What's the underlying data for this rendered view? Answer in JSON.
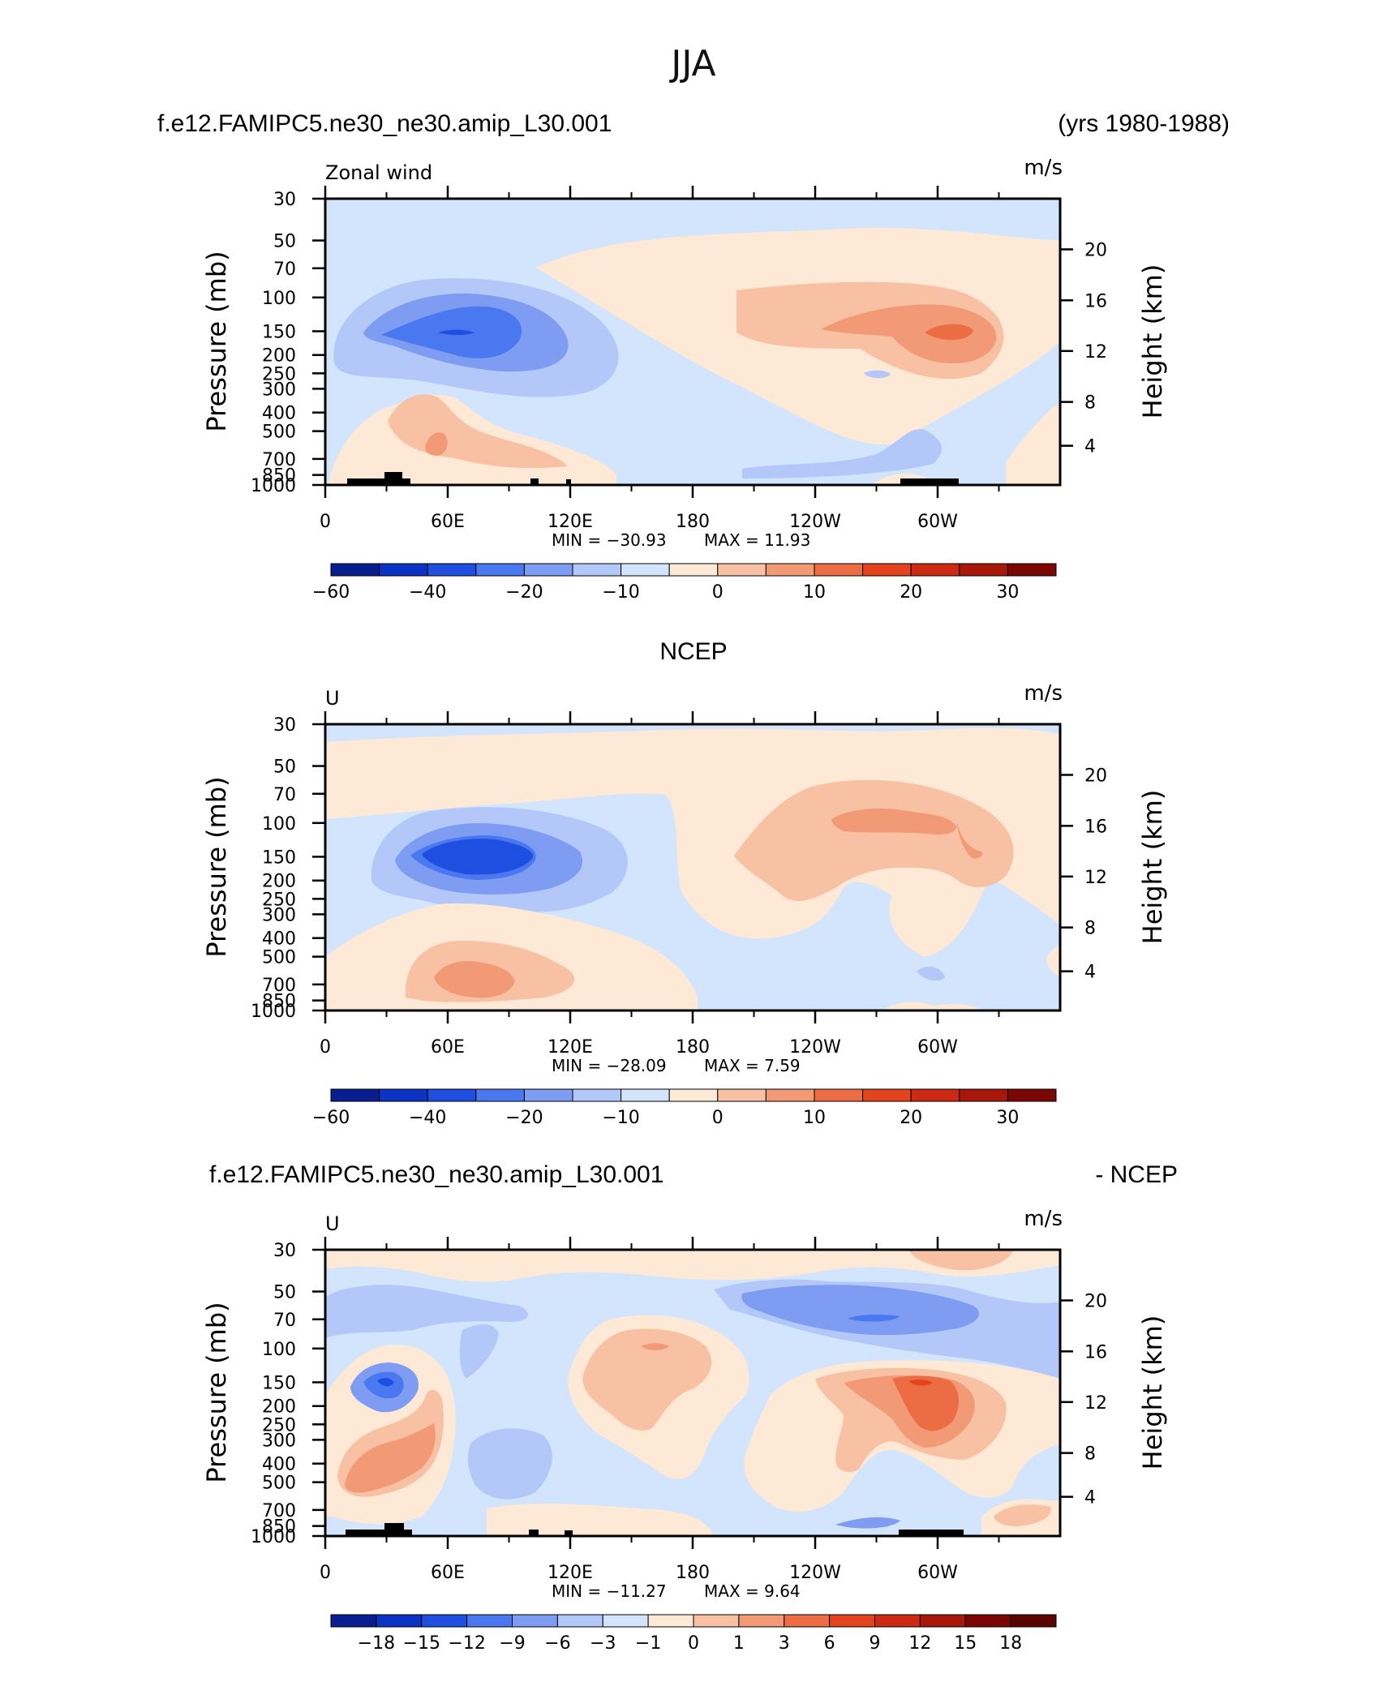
{
  "figure": {
    "title": "JJA",
    "case_name": "f.e12.FAMIPC5.ne30_ne30.amip_L30.001",
    "years": "(yrs 1980-1988)",
    "obs_name": "NCEP",
    "diff_case": "f.e12.FAMIPC5.ne30_ne30.amip_L30.001",
    "diff_suffix": "- NCEP"
  },
  "chart_data": [
    {
      "type": "heatmap",
      "variable_label": "Zonal wind",
      "units": "m/s",
      "ylabel": "Pressure (mb)",
      "ylabel_right": "Height (km)",
      "x_ticks": [
        "0",
        "60E",
        "120E",
        "180",
        "120W",
        "60W"
      ],
      "y_ticks": [
        "30",
        "50",
        "70",
        "100",
        "150",
        "200",
        "250",
        "300",
        "400",
        "500",
        "700",
        "850",
        "1000"
      ],
      "y2_ticks": [
        "20",
        "16",
        "12",
        "8",
        "4"
      ],
      "min_label": "MIN = −30.93",
      "max_label": "MAX = 11.93",
      "min": -30.93,
      "max": 11.93,
      "colorbar_ticks": [
        "−60",
        "−40",
        "−20",
        "−10",
        "0",
        "10",
        "20",
        "30"
      ],
      "colorbar_colors": [
        "#081d8f",
        "#0b34c4",
        "#1f4fe0",
        "#4a78f0",
        "#7e9cf2",
        "#b3c8f8",
        "#d2e5fc",
        "#fde9d6",
        "#f8c1a3",
        "#f29a76",
        "#ec6d44",
        "#e3431d",
        "#cc2a12",
        "#a8170a",
        "#7a0703"
      ]
    },
    {
      "type": "heatmap",
      "variable_label": "U",
      "units": "m/s",
      "ylabel": "Pressure (mb)",
      "ylabel_right": "Height (km)",
      "x_ticks": [
        "0",
        "60E",
        "120E",
        "180",
        "120W",
        "60W"
      ],
      "y_ticks": [
        "30",
        "50",
        "70",
        "100",
        "150",
        "200",
        "250",
        "300",
        "400",
        "500",
        "700",
        "850",
        "1000"
      ],
      "y2_ticks": [
        "20",
        "16",
        "12",
        "8",
        "4"
      ],
      "min_label": "MIN = −28.09",
      "max_label": "MAX = 7.59",
      "min": -28.09,
      "max": 7.59,
      "colorbar_ticks": [
        "−60",
        "−40",
        "−20",
        "−10",
        "0",
        "10",
        "20",
        "30"
      ],
      "colorbar_colors": [
        "#081d8f",
        "#0b34c4",
        "#1f4fe0",
        "#4a78f0",
        "#7e9cf2",
        "#b3c8f8",
        "#d2e5fc",
        "#fde9d6",
        "#f8c1a3",
        "#f29a76",
        "#ec6d44",
        "#e3431d",
        "#cc2a12",
        "#a8170a",
        "#7a0703"
      ]
    },
    {
      "type": "heatmap",
      "variable_label": "U",
      "units": "m/s",
      "ylabel": "Pressure (mb)",
      "ylabel_right": "Height (km)",
      "x_ticks": [
        "0",
        "60E",
        "120E",
        "180",
        "120W",
        "60W"
      ],
      "y_ticks": [
        "30",
        "50",
        "70",
        "100",
        "150",
        "200",
        "250",
        "300",
        "400",
        "500",
        "700",
        "850",
        "1000"
      ],
      "y2_ticks": [
        "20",
        "16",
        "12",
        "8",
        "4"
      ],
      "min_label": "MIN = −11.27",
      "max_label": "MAX = 9.64",
      "min": -11.27,
      "max": 9.64,
      "colorbar_ticks": [
        "−18",
        "−15",
        "−12",
        "−9",
        "−6",
        "−3",
        "−1",
        "0",
        "1",
        "3",
        "6",
        "9",
        "12",
        "15",
        "18"
      ],
      "colorbar_colors": [
        "#081d8f",
        "#0b34c4",
        "#1f4fe0",
        "#4a78f0",
        "#7e9cf2",
        "#b3c8f8",
        "#d2e5fc",
        "#fde9d6",
        "#f8c1a3",
        "#f29a76",
        "#ec6d44",
        "#e3431d",
        "#cc2a12",
        "#a8170a",
        "#7a0703",
        "#5a0402"
      ]
    }
  ]
}
